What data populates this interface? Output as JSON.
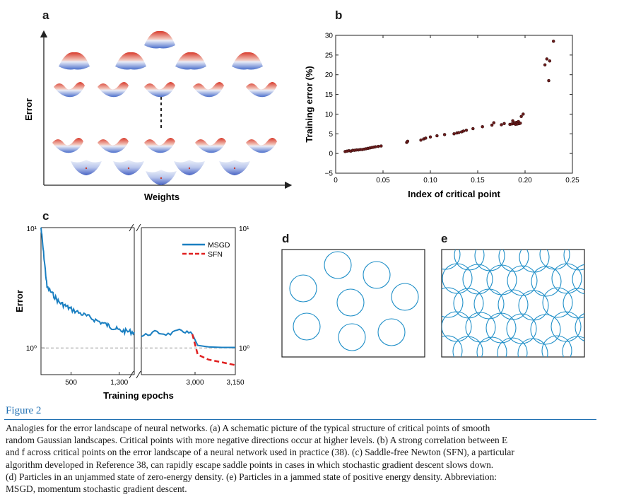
{
  "panels": {
    "a": {
      "letter": "a",
      "xlabel": "Weights",
      "ylabel": "Error"
    },
    "b": {
      "letter": "b"
    },
    "c": {
      "letter": "c"
    },
    "d": {
      "letter": "d"
    },
    "e": {
      "letter": "e"
    }
  },
  "colors": {
    "msgd": "#1a7fc1",
    "sfn": "#e02020",
    "particle": "#1f8fc8",
    "scatter": "#6b1c1c",
    "surface_hi": "#e0462f",
    "surface_lo": "#5b7fd0",
    "caption_blue": "#1f6fb2"
  },
  "chart_data": [
    {
      "panel": "b",
      "type": "scatter",
      "title": "",
      "xlabel": "Index of critical point",
      "ylabel": "Training error (%)",
      "xlim": [
        0,
        0.25
      ],
      "ylim": [
        -5,
        30
      ],
      "xticks": [
        0,
        0.05,
        0.1,
        0.15,
        0.2,
        0.25
      ],
      "xtick_labels": [
        "0",
        "0.05",
        "0.10",
        "0.15",
        "0.20",
        "0.25"
      ],
      "yticks": [
        -5,
        0,
        5,
        10,
        15,
        20,
        25,
        30
      ],
      "ytick_labels": [
        "−5",
        "0",
        "5",
        "10",
        "15",
        "20",
        "25",
        "30"
      ],
      "points": [
        [
          0.01,
          0.5
        ],
        [
          0.012,
          0.6
        ],
        [
          0.014,
          0.7
        ],
        [
          0.016,
          0.6
        ],
        [
          0.018,
          0.8
        ],
        [
          0.02,
          0.8
        ],
        [
          0.022,
          0.9
        ],
        [
          0.024,
          0.9
        ],
        [
          0.026,
          1.0
        ],
        [
          0.028,
          1.0
        ],
        [
          0.03,
          1.1
        ],
        [
          0.032,
          1.2
        ],
        [
          0.034,
          1.3
        ],
        [
          0.036,
          1.4
        ],
        [
          0.038,
          1.5
        ],
        [
          0.04,
          1.6
        ],
        [
          0.042,
          1.7
        ],
        [
          0.045,
          1.8
        ],
        [
          0.048,
          1.9
        ],
        [
          0.075,
          2.8
        ],
        [
          0.076,
          3.1
        ],
        [
          0.09,
          3.4
        ],
        [
          0.093,
          3.7
        ],
        [
          0.095,
          3.9
        ],
        [
          0.1,
          4.2
        ],
        [
          0.107,
          4.5
        ],
        [
          0.115,
          4.8
        ],
        [
          0.125,
          5.0
        ],
        [
          0.128,
          5.2
        ],
        [
          0.13,
          5.3
        ],
        [
          0.133,
          5.5
        ],
        [
          0.135,
          5.7
        ],
        [
          0.138,
          5.9
        ],
        [
          0.145,
          6.3
        ],
        [
          0.155,
          6.8
        ],
        [
          0.165,
          7.2
        ],
        [
          0.167,
          7.8
        ],
        [
          0.175,
          7.3
        ],
        [
          0.178,
          7.6
        ],
        [
          0.184,
          7.4
        ],
        [
          0.186,
          7.5
        ],
        [
          0.187,
          8.3
        ],
        [
          0.188,
          7.6
        ],
        [
          0.189,
          7.8
        ],
        [
          0.19,
          7.4
        ],
        [
          0.191,
          7.9
        ],
        [
          0.192,
          7.5
        ],
        [
          0.193,
          8.1
        ],
        [
          0.194,
          7.6
        ],
        [
          0.195,
          7.7
        ],
        [
          0.196,
          9.4
        ],
        [
          0.198,
          10.0
        ],
        [
          0.221,
          22.5
        ],
        [
          0.223,
          24.0
        ],
        [
          0.225,
          18.5
        ],
        [
          0.226,
          23.5
        ],
        [
          0.23,
          28.5
        ]
      ]
    },
    {
      "panel": "c",
      "type": "line",
      "xlabel": "Training epochs",
      "ylabel": "Error",
      "y_scale": "log",
      "ytick_labels": [
        "10¹",
        "10⁰"
      ],
      "xtick_labels_left": [
        "500",
        "1,300"
      ],
      "xtick_labels_right": [
        "3,000",
        "3,150"
      ],
      "reference_line": "10⁰",
      "legend": [
        "MSGD",
        "SFN"
      ],
      "series": [
        {
          "name": "MSGD",
          "x_left": [
            0,
            100,
            300,
            500,
            800,
            1100,
            1300,
            1550
          ],
          "y_left": [
            10,
            3.2,
            2.4,
            2.1,
            1.8,
            1.55,
            1.4,
            1.35
          ],
          "x_right": [
            2800,
            2850,
            2900,
            2950,
            2990,
            3010,
            3050,
            3100,
            3150
          ],
          "y_right": [
            1.25,
            1.35,
            1.3,
            1.4,
            1.3,
            1.05,
            1.02,
            1.01,
            1.01
          ]
        },
        {
          "name": "SFN",
          "x_right": [
            2990,
            3010,
            3050,
            3100,
            3150
          ],
          "y_right": [
            1.3,
            0.88,
            0.8,
            0.76,
            0.72
          ]
        }
      ]
    }
  ],
  "caption": {
    "title": "Figure 2",
    "lines": [
      "Analogies for the error landscape of neural networks. (a) A schematic picture of the typical structure of critical points of smooth",
      "random Gaussian landscapes. Critical points with more negative directions occur at higher levels. (b) A strong correlation between E",
      "and f across critical points on the error landscape of a neural network used in practice (38). (c) Saddle-free Newton (SFN), a particular",
      "algorithm developed in Reference 38, can rapidly escape saddle points in cases in which stochastic gradient descent slows down.",
      "(d) Particles in an unjammed state of zero-energy density. (e) Particles in a jammed state of positive energy density. Abbreviation:",
      "MSGD, momentum stochastic gradient descent."
    ]
  }
}
